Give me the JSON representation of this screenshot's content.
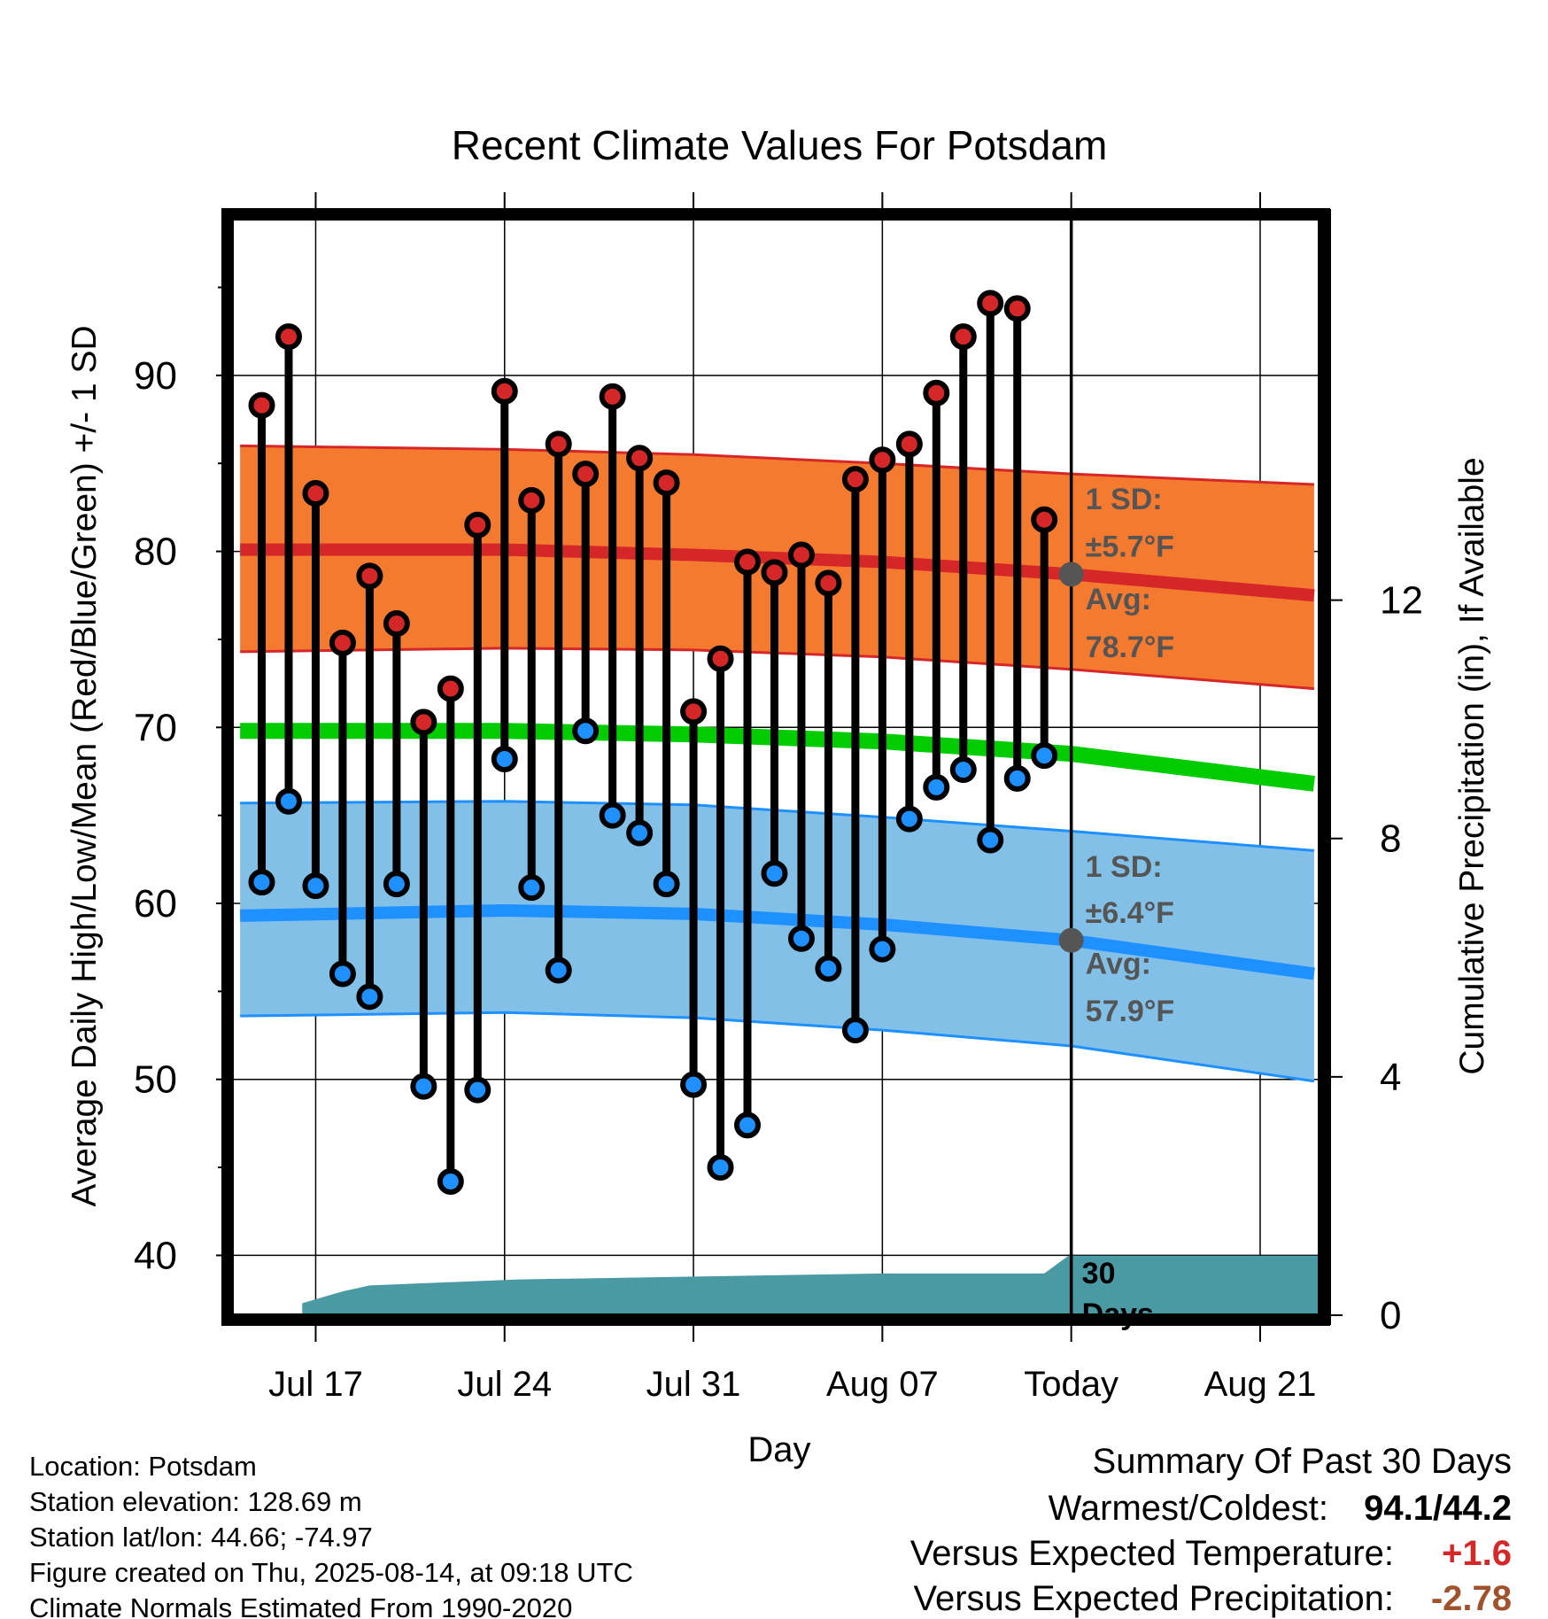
{
  "chart_data": {
    "type": "line",
    "title": "Recent Climate Values For Potsdam",
    "xlabel": "Day",
    "ylabel": "Average Daily High/Low/Mean (Red/Blue/Green) +/- 1 SD",
    "ylabel_right": "Cumulative Precipitation (in), If Available",
    "ylim": [
      36.6,
      98.9
    ],
    "ylim_right": [
      0,
      18.4
    ],
    "xlim": [
      13.9,
      54.2
    ],
    "x_ticks": [
      {
        "x": 17,
        "label": "Jul 17"
      },
      {
        "x": 24,
        "label": "Jul 24"
      },
      {
        "x": 31,
        "label": "Jul 31"
      },
      {
        "x": 38,
        "label": "Aug 07"
      },
      {
        "x": 45,
        "label": "Today"
      },
      {
        "x": 52,
        "label": "Aug 21"
      }
    ],
    "y_ticks": [
      40,
      50,
      60,
      70,
      80,
      90
    ],
    "y_ticks_right": [
      0,
      4,
      8,
      12
    ],
    "grid": true,
    "days": [
      15,
      16,
      17,
      18,
      19,
      20,
      21,
      22,
      23,
      24,
      25,
      26,
      27,
      28,
      29,
      30,
      31,
      32,
      33,
      34,
      35,
      36,
      37,
      38,
      39,
      40,
      41,
      42,
      43,
      44
    ],
    "series": [
      {
        "name": "High",
        "color": "#d62728",
        "values": [
          88.3,
          92.2,
          83.3,
          74.8,
          78.6,
          75.9,
          70.3,
          72.2,
          81.5,
          89.1,
          82.9,
          86.1,
          84.4,
          88.8,
          85.3,
          83.9,
          70.9,
          73.9,
          79.4,
          78.8,
          79.8,
          78.2,
          84.1,
          85.2,
          86.1,
          89.0,
          92.2,
          94.1,
          93.8,
          81.8
        ]
      },
      {
        "name": "Low",
        "color": "#1e90ff",
        "values": [
          61.2,
          65.8,
          61.0,
          56.0,
          54.7,
          61.1,
          49.6,
          44.2,
          49.4,
          68.2,
          60.9,
          56.2,
          69.8,
          65.0,
          64.0,
          61.1,
          49.7,
          45.0,
          47.4,
          61.7,
          58.0,
          56.3,
          52.8,
          57.4,
          64.8,
          66.6,
          67.6,
          63.6,
          67.1,
          68.4
        ]
      },
      {
        "name": "Normal High",
        "color": "#d62728",
        "x": [
          14.2,
          24,
          31,
          38,
          45,
          54
        ],
        "values": [
          80.1,
          80.1,
          79.8,
          79.4,
          78.7,
          77.5
        ],
        "sd_upper": [
          86.0,
          85.8,
          85.5,
          85.0,
          84.4,
          83.8
        ],
        "sd_lower": [
          74.3,
          74.5,
          74.4,
          74.0,
          73.3,
          72.2
        ]
      },
      {
        "name": "Normal Mean",
        "color": "#00cc00",
        "x": [
          14.2,
          24,
          31,
          38,
          45,
          54
        ],
        "values": [
          69.8,
          69.8,
          69.6,
          69.2,
          68.5,
          66.8
        ]
      },
      {
        "name": "Normal Low",
        "color": "#1e90ff",
        "x": [
          14.2,
          24,
          31,
          38,
          45,
          54
        ],
        "values": [
          59.3,
          59.6,
          59.4,
          58.8,
          57.9,
          56.0
        ],
        "sd_upper": [
          65.7,
          65.8,
          65.6,
          64.9,
          64.1,
          63.0
        ],
        "sd_lower": [
          53.6,
          53.8,
          53.5,
          52.8,
          51.9,
          49.9
        ]
      },
      {
        "name": "Cumulative Precipitation",
        "color": "#4a9aa4",
        "x": [
          16.5,
          18.0,
          19.0,
          24.5,
          38.0,
          44.0,
          44.9,
          54.2
        ],
        "values": [
          0.2,
          0.4,
          0.5,
          0.6,
          0.7,
          0.7,
          1.0,
          1.0
        ]
      }
    ],
    "annotations": {
      "high_sd_label": "1 SD:",
      "high_sd_value": "±5.7°F",
      "high_avg_label": "Avg:",
      "high_avg_value": "78.7°F",
      "low_sd_label": "1 SD:",
      "low_sd_value": "±6.4°F",
      "low_avg_label": "Avg:",
      "low_avg_value": "57.9°F",
      "window_label_1": "30",
      "window_label_2": "Days"
    }
  },
  "info": {
    "location": "Location: Potsdam",
    "elevation": "Station elevation: 128.69 m",
    "latlon": "Station lat/lon: 44.66; -74.97",
    "created": "Figure created on Thu, 2025-08-14, at 09:18 UTC",
    "normals": "Climate Normals Estimated From 1990-2020"
  },
  "summary": {
    "title": "Summary Of Past 30 Days",
    "warm_cold_label": "Warmest/Coldest:",
    "warm_cold_value": "94.1/44.2",
    "temp_label": "Versus Expected Temperature:",
    "temp_value": "+1.6",
    "temp_color": "#d62728",
    "precip_label": "Versus Expected Precipitation:",
    "precip_value": "-2.78",
    "precip_color": "#a0522d"
  }
}
